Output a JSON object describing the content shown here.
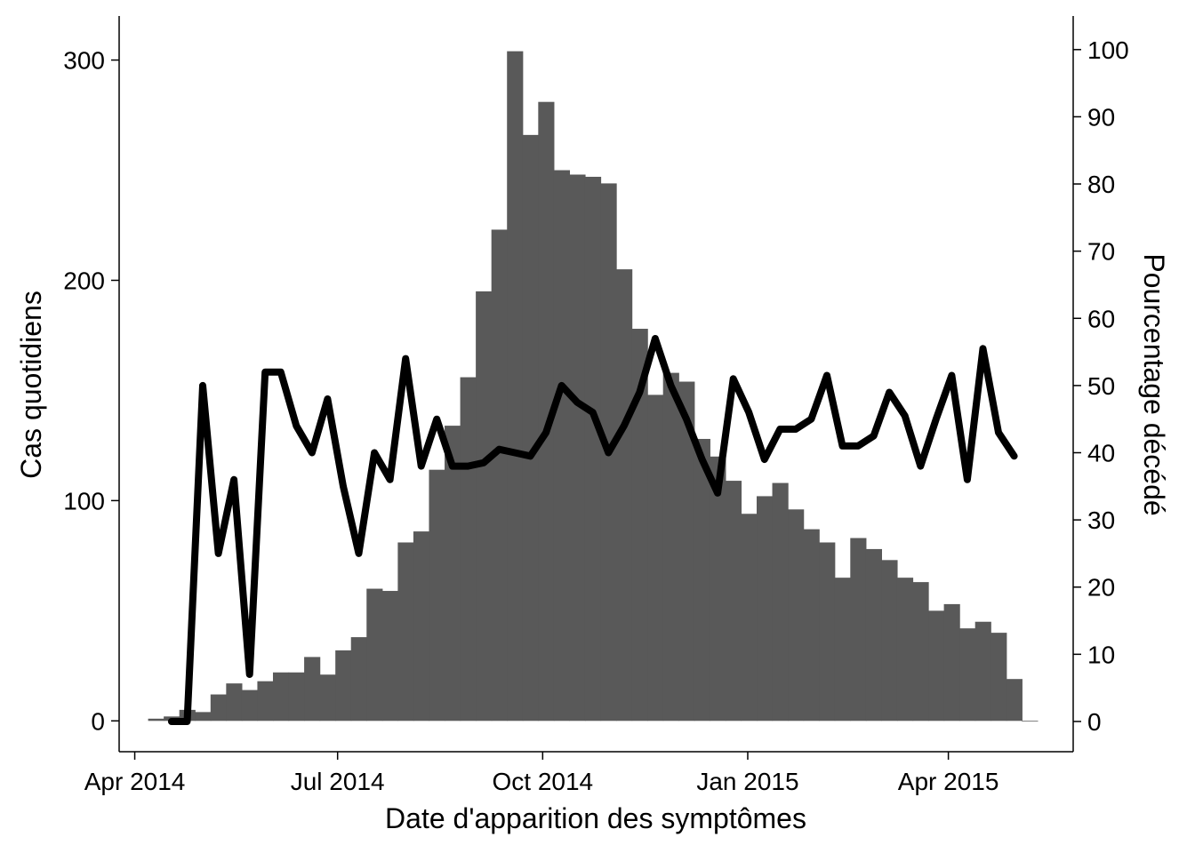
{
  "chart_data": {
    "type": "bar+line",
    "title": "",
    "xlabel": "Date d'apparition des symptômes",
    "ylabel_left": "Cas quotidiens",
    "ylabel_right": "Pourcentage décédé",
    "x_ticks": [
      "2014-04-01",
      "2014-07-01",
      "2014-10-01",
      "2015-01-01",
      "2015-04-01"
    ],
    "x_tick_labels": [
      "Apr 2014",
      "Jul 2014",
      "Oct 2014",
      "Jan 2015",
      "Apr 2015"
    ],
    "y_left_ticks": [
      0,
      100,
      200,
      300
    ],
    "y_right_ticks": [
      0,
      10,
      20,
      30,
      40,
      50,
      60,
      70,
      80,
      90,
      100
    ],
    "xlim": [
      "2014-03-25",
      "2015-05-27"
    ],
    "ylim_left": [
      -14,
      320
    ],
    "ylim_right": [
      -4.5,
      105
    ],
    "grid": false,
    "legend": "none",
    "bar_color": "#595959",
    "line_color": "#000000",
    "weeks": [
      "2014-04-07",
      "2014-04-14",
      "2014-04-21",
      "2014-04-28",
      "2014-05-05",
      "2014-05-12",
      "2014-05-19",
      "2014-05-26",
      "2014-06-02",
      "2014-06-09",
      "2014-06-16",
      "2014-06-23",
      "2014-06-30",
      "2014-07-07",
      "2014-07-14",
      "2014-07-21",
      "2014-07-28",
      "2014-08-04",
      "2014-08-11",
      "2014-08-18",
      "2014-08-25",
      "2014-09-01",
      "2014-09-08",
      "2014-09-15",
      "2014-09-22",
      "2014-09-29",
      "2014-10-06",
      "2014-10-13",
      "2014-10-20",
      "2014-10-27",
      "2014-11-03",
      "2014-11-10",
      "2014-11-17",
      "2014-11-24",
      "2014-12-01",
      "2014-12-08",
      "2014-12-15",
      "2014-12-22",
      "2014-12-29",
      "2015-01-05",
      "2015-01-12",
      "2015-01-19",
      "2015-01-26",
      "2015-02-02",
      "2015-02-09",
      "2015-02-16",
      "2015-02-23",
      "2015-03-02",
      "2015-03-09",
      "2015-03-16",
      "2015-03-23",
      "2015-03-30",
      "2015-04-06",
      "2015-04-13",
      "2015-04-20",
      "2015-04-27",
      "2015-05-04"
    ],
    "series": [
      {
        "type": "bar",
        "axis": "left",
        "values": [
          1,
          2,
          5,
          4,
          12,
          17,
          14,
          18,
          22,
          22,
          29,
          21,
          32,
          38,
          60,
          59,
          81,
          86,
          114,
          134,
          156,
          195,
          223,
          304,
          266,
          281,
          250,
          248,
          247,
          244,
          205,
          178,
          148,
          158,
          154,
          128,
          120,
          109,
          94,
          102,
          108,
          96,
          87,
          81,
          65,
          83,
          78,
          73,
          65,
          63,
          50,
          53,
          42,
          45,
          40,
          19,
          0
        ]
      },
      {
        "type": "line",
        "axis": "right",
        "values": [
          null,
          0,
          0,
          50,
          25,
          36,
          7,
          52,
          52,
          44,
          40,
          48,
          35,
          25,
          40,
          36,
          54,
          38,
          45,
          38,
          38,
          38.5,
          40.5,
          40,
          39.5,
          43,
          50,
          47.5,
          46,
          40,
          44,
          49,
          57,
          50,
          45,
          39,
          34,
          51,
          46,
          39,
          43.5,
          43.5,
          45,
          51.5,
          41,
          41,
          42.5,
          49,
          45.5,
          38,
          45,
          51.5,
          36,
          55.5,
          43,
          39.5,
          null
        ]
      }
    ]
  }
}
